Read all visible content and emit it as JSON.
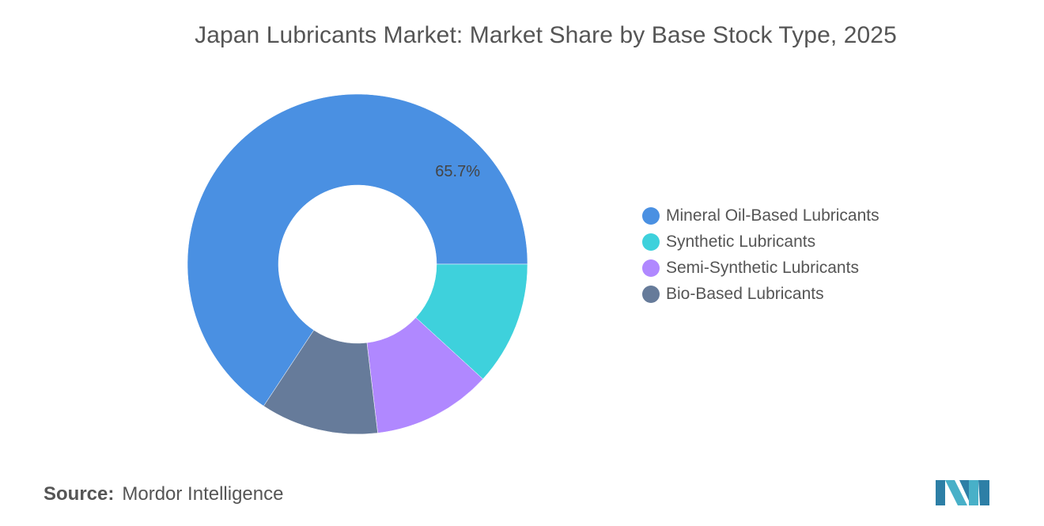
{
  "chart_data": {
    "type": "pie",
    "title": "Japan Lubricants Market: Market Share by Base Stock Type, 2025",
    "donut": true,
    "slices": [
      {
        "label": "Mineral Oil-Based Lubricants",
        "value": 65.7,
        "color": "#4a90e2",
        "display_label": "65.7%"
      },
      {
        "label": "Synthetic Lubricants",
        "value": 11.8,
        "color": "#3ed1dc",
        "display_label": ""
      },
      {
        "label": "Semi-Synthetic Lubricants",
        "value": 11.3,
        "color": "#b088ff",
        "display_label": ""
      },
      {
        "label": "Bio-Based Lubricants",
        "value": 11.2,
        "color": "#667b9a",
        "display_label": ""
      }
    ],
    "legend_position": "right"
  },
  "footer": {
    "source_label": "Source:",
    "source_value": "Mordor Intelligence"
  },
  "logo": {
    "icon": "mordor-intelligence-logo",
    "color": "#48b0c8"
  }
}
